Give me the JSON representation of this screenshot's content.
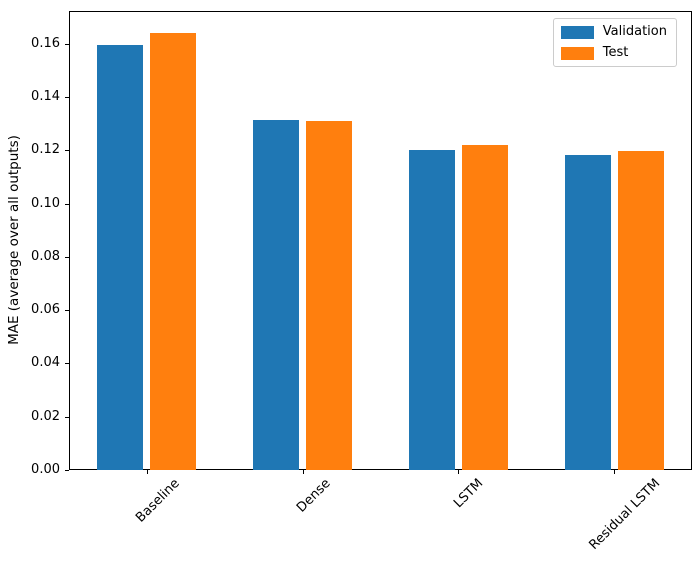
{
  "chart_data": {
    "type": "bar",
    "categories": [
      "Baseline",
      "Dense",
      "LSTM",
      "Residual LSTM"
    ],
    "series": [
      {
        "name": "Validation",
        "color": "#1f77b4",
        "values": [
          0.1595,
          0.1312,
          0.1201,
          0.1184
        ]
      },
      {
        "name": "Test",
        "color": "#ff7f0e",
        "values": [
          0.1641,
          0.131,
          0.1219,
          0.1197
        ]
      }
    ],
    "title": "",
    "xlabel": "",
    "ylabel": "MAE (average over all outputs)",
    "ylim": [
      0,
      0.1723
    ],
    "yticks": [
      0.0,
      0.02,
      0.04,
      0.06,
      0.08,
      0.1,
      0.12,
      0.14,
      0.16
    ],
    "ytick_decimals": 2,
    "xtick_rotation_deg": 45,
    "grid": false,
    "legend": {
      "position": "upper right",
      "entries": [
        "Validation",
        "Test"
      ]
    }
  }
}
